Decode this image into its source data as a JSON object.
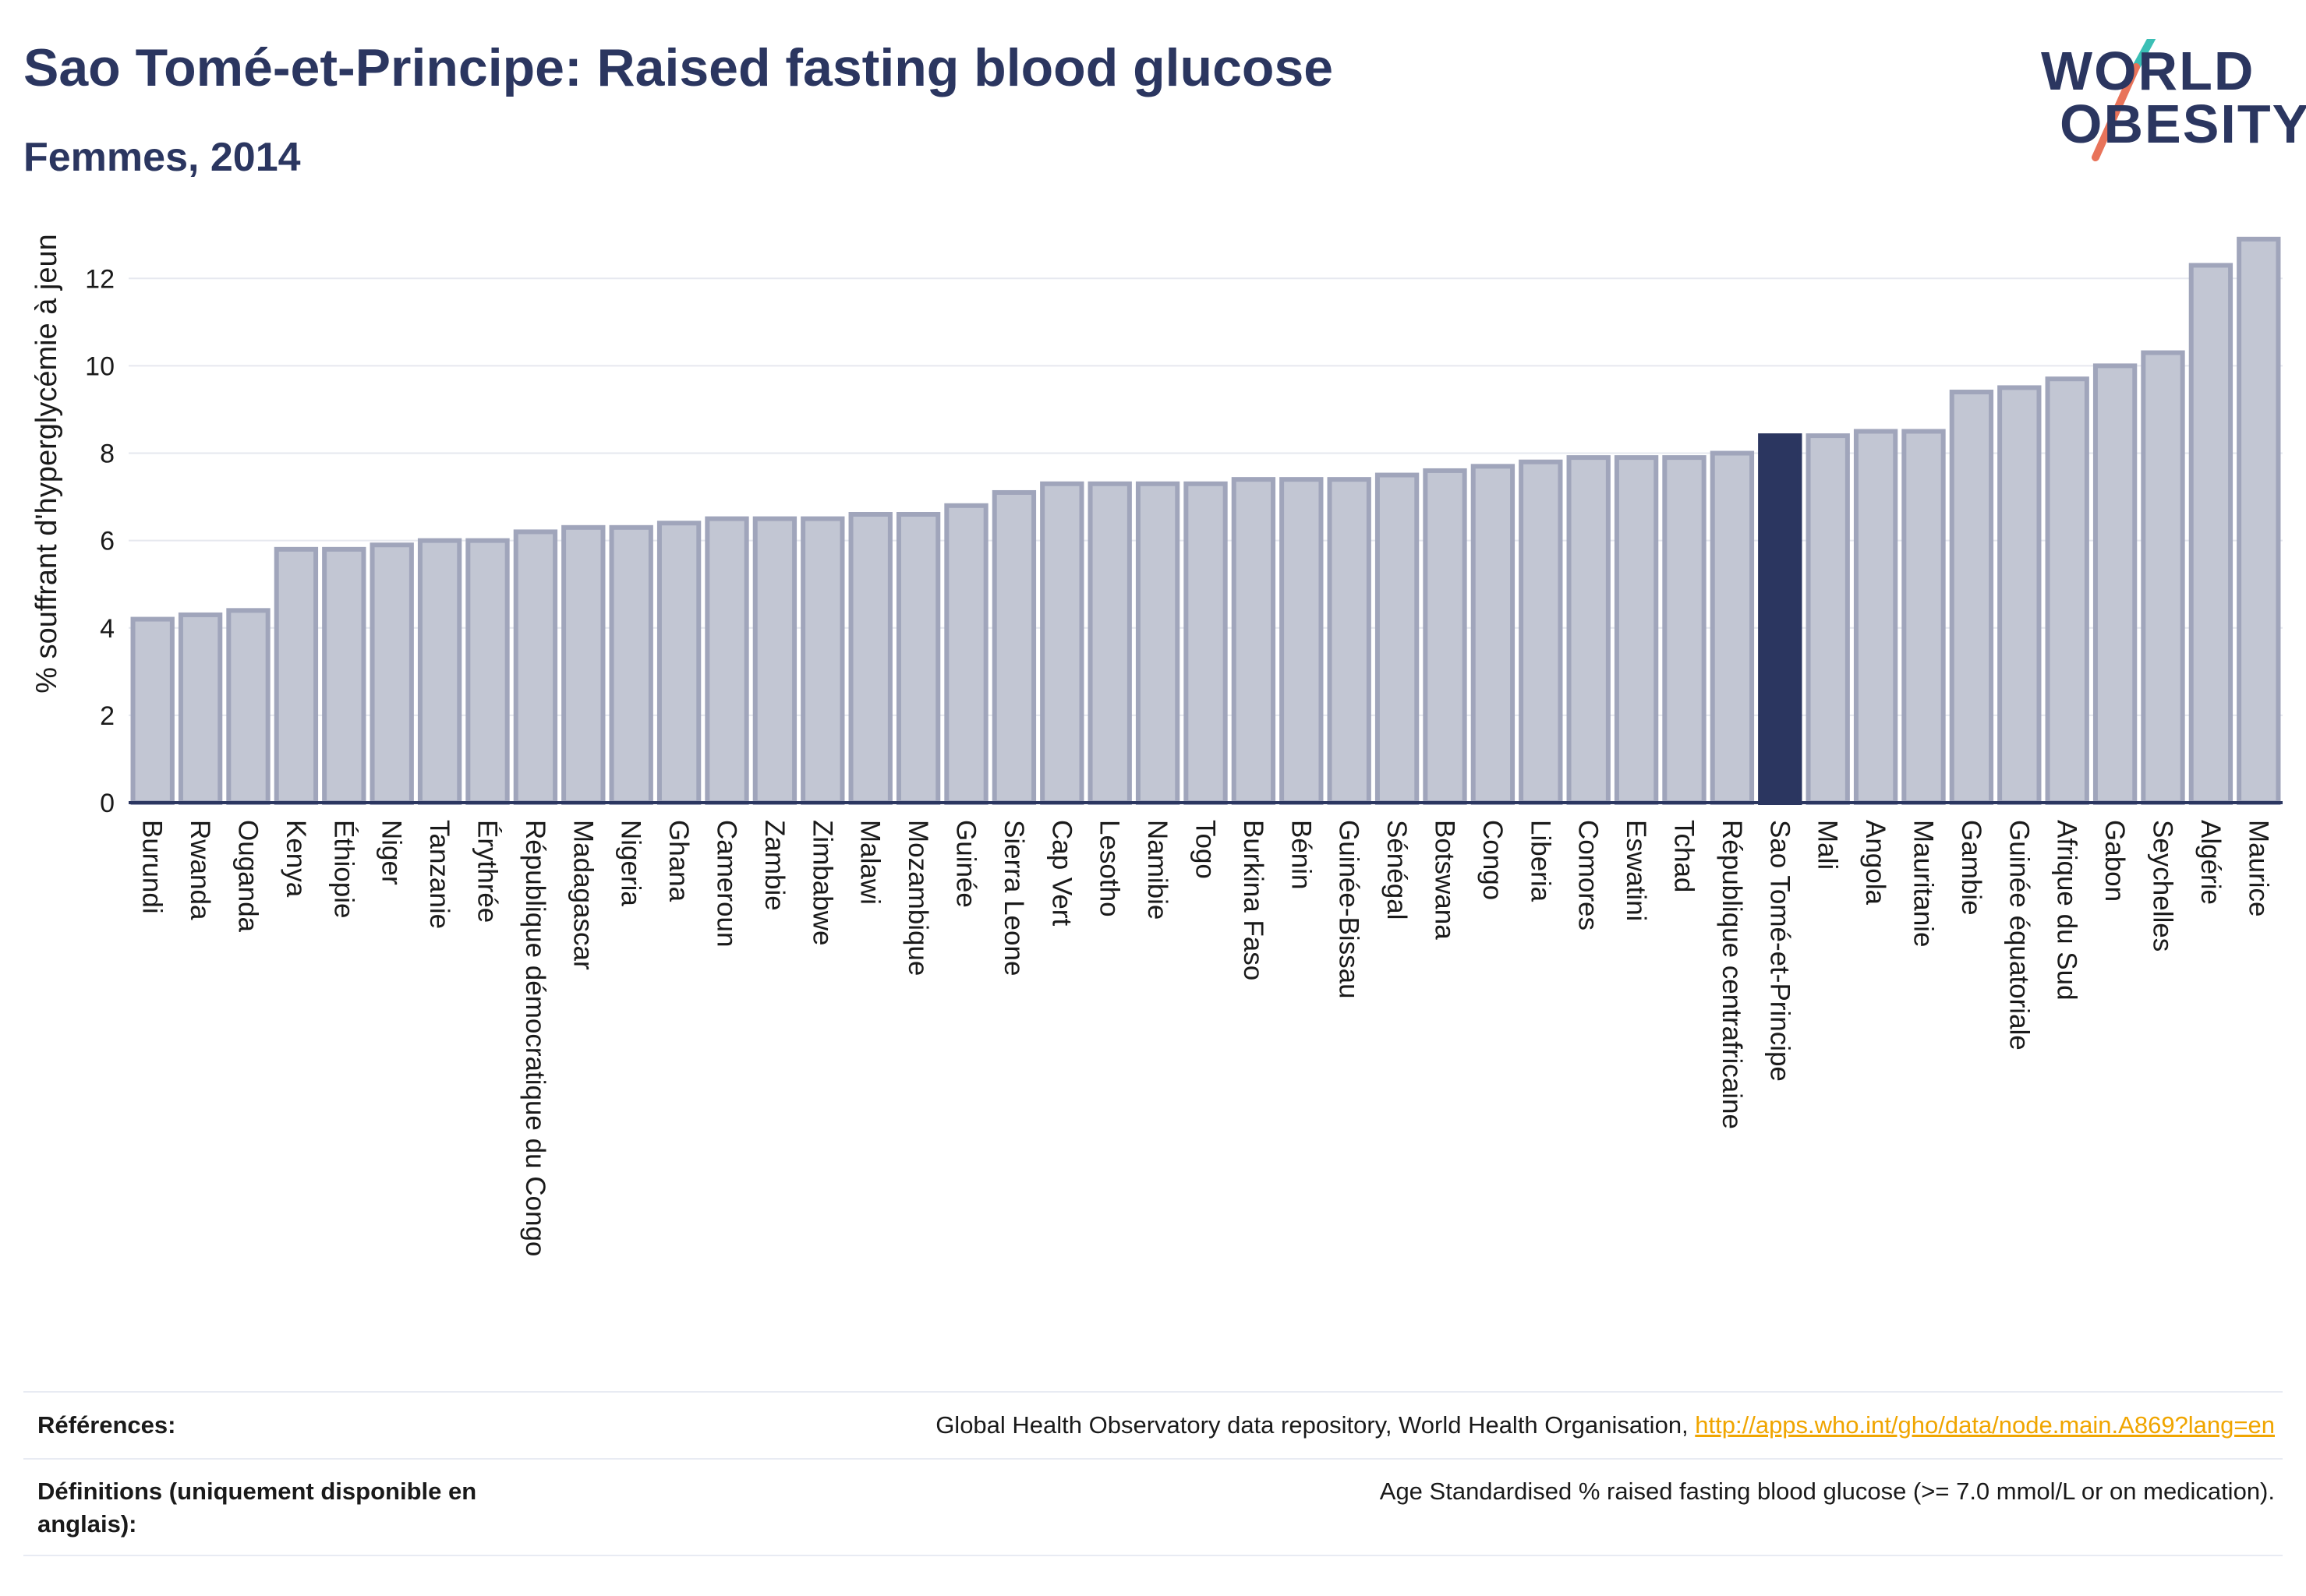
{
  "title": "Sao Tomé-et-Principe: Raised fasting blood glucose",
  "subtitle": "Femmes, 2014",
  "logo": {
    "line1": "WORLD",
    "line2": "OBESITY",
    "slash_colors": [
      "#3bbfb5",
      "#e8735a"
    ]
  },
  "colors": {
    "bar": "#c2c6d3",
    "bar_edge": "#a0a5bb",
    "highlight": "#2b3660",
    "axis": "#2b3660",
    "grid": "#e6e8ef",
    "link": "#f0a500"
  },
  "chart_data": {
    "type": "bar",
    "ylabel": "% souffrant d'hyperglycémie à jeun",
    "ylim": [
      0,
      13.2
    ],
    "yticks": [
      0,
      2,
      4,
      6,
      8,
      10,
      12
    ],
    "grid": true,
    "highlight": "Sao Tomé-et-Principe",
    "categories": [
      "Burundi",
      "Rwanda",
      "Ougandа",
      "Kenya",
      "Éthiopie",
      "Niger",
      "Tanzanie",
      "Érythrée",
      "République démocratique du Congo",
      "Madagascar",
      "Nigeria",
      "Ghana",
      "Cameroun",
      "Zambie",
      "Zimbabwe",
      "Malawi",
      "Mozambique",
      "Guinée",
      "Sierra Leone",
      "Cap Vert",
      "Lesotho",
      "Namibie",
      "Togo",
      "Burkina Faso",
      "Bénin",
      "Guinée-Bissau",
      "Sénégal",
      "Botswana",
      "Congo",
      "Liberia",
      "Comores",
      "Eswatini",
      "Tchad",
      "République centrafricaine",
      "Sao Tomé-et-Principe",
      "Mali",
      "Angola",
      "Mauritanie",
      "Gambie",
      "Guinée équatoriale",
      "Afrique du Sud",
      "Gabon",
      "Seychelles",
      "Algérie",
      "Maurice"
    ],
    "values": [
      4.2,
      4.3,
      4.4,
      5.8,
      5.8,
      5.9,
      6.0,
      6.0,
      6.2,
      6.3,
      6.3,
      6.4,
      6.5,
      6.5,
      6.5,
      6.6,
      6.6,
      6.8,
      7.1,
      7.3,
      7.3,
      7.3,
      7.3,
      7.4,
      7.4,
      7.4,
      7.5,
      7.6,
      7.7,
      7.8,
      7.9,
      7.9,
      7.9,
      8.0,
      8.4,
      8.4,
      8.5,
      8.5,
      9.4,
      9.5,
      9.7,
      10.0,
      10.3,
      12.3,
      12.9
    ]
  },
  "references": {
    "label": "Références:",
    "text": "Global Health Observatory data repository, World Health Organisation, ",
    "link": "http://apps.who.int/gho/data/node.main.A869?lang=en"
  },
  "definitions": {
    "label": "Définitions (uniquement disponible en anglais):",
    "text": "Age Standardised % raised fasting blood glucose (>= 7.0 mmol/L or on medication)."
  }
}
